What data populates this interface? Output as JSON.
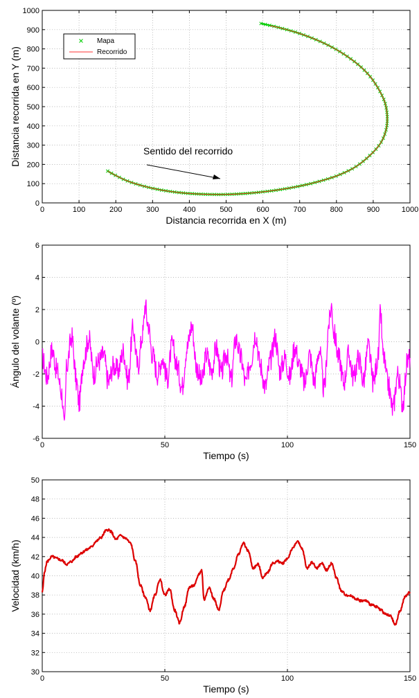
{
  "chart_data": [
    {
      "type": "line",
      "id": "map",
      "xlabel": "Distancia recorrida en X (m)",
      "ylabel": "Distancia recorrida en Y (m)",
      "xlim": [
        0,
        1000
      ],
      "ylim": [
        0,
        1000
      ],
      "xticks": [
        0,
        100,
        200,
        300,
        400,
        500,
        600,
        700,
        800,
        900,
        1000
      ],
      "yticks": [
        0,
        100,
        200,
        300,
        400,
        500,
        600,
        700,
        800,
        900,
        1000
      ],
      "grid": true,
      "legend": "top-left",
      "annotation": "Sentido del recorrido",
      "series": [
        {
          "name": "Mapa",
          "marker": "x",
          "color": "#00cc00",
          "points": [
            [
              178,
              165
            ],
            [
              200,
              142
            ],
            [
              230,
              115
            ],
            [
              270,
              90
            ],
            [
              320,
              68
            ],
            [
              380,
              52
            ],
            [
              440,
              45
            ],
            [
              500,
              44
            ],
            [
              560,
              50
            ],
            [
              620,
              62
            ],
            [
              680,
              80
            ],
            [
              740,
              105
            ],
            [
              800,
              140
            ],
            [
              850,
              185
            ],
            [
              890,
              245
            ],
            [
              920,
              310
            ],
            [
              935,
              380
            ],
            [
              938,
              450
            ],
            [
              932,
              520
            ],
            [
              915,
              590
            ],
            [
              890,
              660
            ],
            [
              855,
              725
            ],
            [
              810,
              785
            ],
            [
              760,
              835
            ],
            [
              700,
              880
            ],
            [
              645,
              910
            ],
            [
              595,
              932
            ]
          ]
        },
        {
          "name": "Recorrido",
          "marker": "line",
          "color": "#ff3333",
          "points": [
            [
              178,
              165
            ],
            [
              200,
              142
            ],
            [
              230,
              115
            ],
            [
              270,
              90
            ],
            [
              320,
              68
            ],
            [
              380,
              52
            ],
            [
              440,
              45
            ],
            [
              500,
              44
            ],
            [
              560,
              50
            ],
            [
              620,
              62
            ],
            [
              680,
              80
            ],
            [
              740,
              105
            ],
            [
              800,
              140
            ],
            [
              850,
              185
            ],
            [
              890,
              245
            ],
            [
              920,
              310
            ],
            [
              935,
              380
            ],
            [
              938,
              450
            ],
            [
              932,
              520
            ],
            [
              915,
              590
            ],
            [
              890,
              660
            ],
            [
              855,
              725
            ],
            [
              810,
              785
            ],
            [
              760,
              835
            ],
            [
              700,
              880
            ],
            [
              645,
              910
            ],
            [
              620,
              920
            ]
          ]
        }
      ]
    },
    {
      "type": "line",
      "id": "steering",
      "xlabel": "Tiempo (s)",
      "ylabel": "Ángulo del volante (º)",
      "xlim": [
        0,
        150
      ],
      "ylim": [
        -6,
        6
      ],
      "xticks": [
        0,
        50,
        100,
        150
      ],
      "yticks": [
        -6,
        -4,
        -2,
        0,
        2,
        4,
        6
      ],
      "grid": true,
      "series": [
        {
          "color": "#ff00ff",
          "x": [
            0,
            2,
            4,
            6,
            8,
            9,
            10,
            12,
            14,
            15,
            17,
            19,
            21,
            23,
            25,
            27,
            29,
            31,
            33,
            35,
            37,
            39,
            41,
            42,
            43,
            45,
            47,
            49,
            51,
            53,
            55,
            57,
            59,
            61,
            63,
            65,
            67,
            69,
            71,
            73,
            75,
            77,
            79,
            81,
            83,
            85,
            87,
            89,
            91,
            93,
            95,
            97,
            99,
            101,
            103,
            105,
            107,
            109,
            111,
            113,
            115,
            117,
            118,
            119,
            121,
            123,
            125,
            127,
            129,
            131,
            133,
            135,
            137,
            138,
            139,
            141,
            143,
            145,
            147,
            149,
            150
          ],
          "y": [
            -1.0,
            -2.2,
            -0.5,
            -1.8,
            -3.2,
            -5.4,
            -1.5,
            0.3,
            -2.5,
            -3.8,
            -1.0,
            0.2,
            -2.0,
            -1.2,
            -0.8,
            -2.5,
            -1.5,
            -1.8,
            -0.6,
            -2.4,
            0.8,
            -1.5,
            0.5,
            2.3,
            1.2,
            -0.8,
            -2.0,
            -1.0,
            -2.3,
            -0.2,
            -1.5,
            -2.8,
            -0.4,
            1.0,
            -1.6,
            -2.5,
            -0.8,
            -1.8,
            -0.4,
            -2.0,
            -0.7,
            -2.4,
            0.2,
            -1.0,
            -2.6,
            -1.2,
            0.5,
            -1.5,
            -2.8,
            -1.2,
            0.3,
            -1.8,
            -1.0,
            -2.2,
            -0.3,
            -1.5,
            -2.6,
            -0.8,
            -2.4,
            -0.5,
            -3.0,
            1.2,
            2.2,
            0.5,
            -1.0,
            -2.5,
            -0.8,
            -2.2,
            -1.0,
            -2.4,
            -0.3,
            -2.5,
            -1.0,
            1.8,
            -0.8,
            -2.6,
            -4.2,
            -2.0,
            -3.8,
            -1.2,
            -1.0
          ]
        }
      ]
    },
    {
      "type": "line",
      "id": "speed",
      "xlabel": "Tiempo (s)",
      "ylabel": "Velocidad (km/h)",
      "xlim": [
        0,
        150
      ],
      "ylim": [
        30,
        50
      ],
      "xticks": [
        0,
        50,
        100,
        150
      ],
      "yticks": [
        30,
        32,
        34,
        36,
        38,
        40,
        42,
        44,
        46,
        48,
        50
      ],
      "grid": true,
      "series": [
        {
          "color": "#dd0000",
          "x": [
            0,
            1,
            2,
            4,
            6,
            8,
            10,
            12,
            14,
            16,
            18,
            20,
            22,
            24,
            26,
            27,
            28,
            30,
            32,
            34,
            36,
            38,
            40,
            42,
            44,
            46,
            48,
            50,
            52,
            54,
            56,
            58,
            60,
            62,
            64,
            65,
            66,
            68,
            70,
            72,
            74,
            76,
            78,
            80,
            82,
            84,
            86,
            88,
            90,
            92,
            94,
            96,
            98,
            100,
            102,
            104,
            106,
            108,
            110,
            112,
            114,
            116,
            118,
            120,
            122,
            124,
            126,
            128,
            130,
            132,
            134,
            136,
            138,
            140,
            142,
            144,
            146,
            148,
            150
          ],
          "y": [
            38.3,
            40.5,
            41.5,
            42.0,
            41.8,
            41.6,
            41.2,
            41.5,
            42.0,
            42.4,
            42.7,
            43.0,
            43.6,
            44.0,
            44.7,
            44.8,
            44.6,
            43.8,
            44.2,
            43.9,
            43.4,
            41.5,
            39.0,
            37.8,
            36.4,
            38.0,
            39.6,
            38.0,
            38.6,
            36.4,
            35.1,
            36.8,
            38.8,
            39.0,
            40.2,
            40.6,
            37.5,
            38.8,
            37.6,
            36.4,
            38.5,
            39.6,
            40.8,
            42.2,
            43.4,
            42.6,
            40.8,
            41.2,
            39.8,
            40.4,
            41.3,
            41.5,
            41.3,
            41.8,
            42.8,
            43.6,
            42.8,
            40.8,
            41.4,
            40.8,
            41.3,
            40.6,
            41.3,
            39.8,
            38.4,
            38.0,
            37.9,
            37.6,
            37.4,
            37.4,
            37.0,
            36.8,
            36.5,
            36.0,
            35.8,
            34.9,
            36.4,
            37.8,
            38.3
          ]
        }
      ]
    }
  ]
}
